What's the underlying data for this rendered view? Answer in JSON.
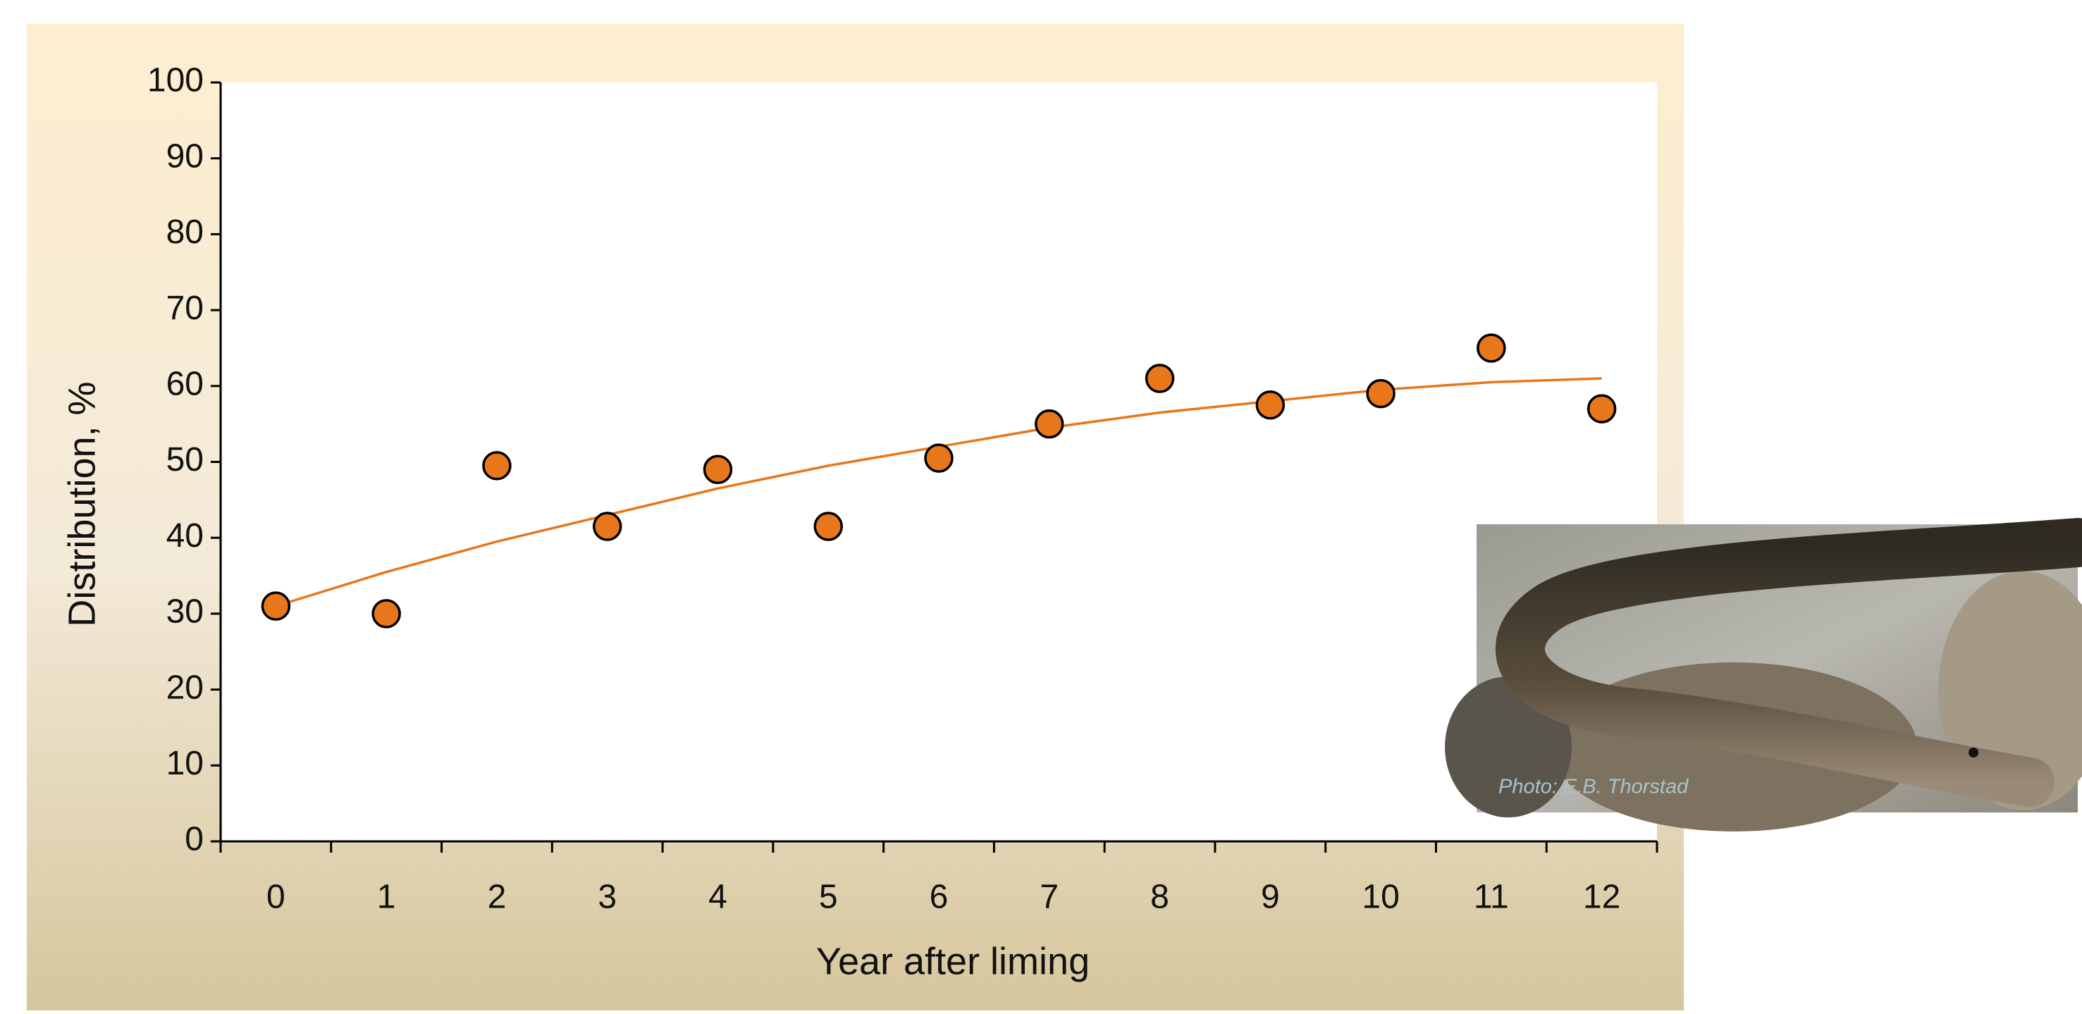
{
  "chart_data": {
    "type": "scatter",
    "x_label": "Year after liming",
    "y_label": "Distribution, %",
    "categories": [
      "0",
      "1",
      "2",
      "3",
      "4",
      "5",
      "6",
      "7",
      "8",
      "9",
      "10",
      "11",
      "12"
    ],
    "values": [
      31,
      30,
      49.5,
      41.5,
      49,
      41.5,
      50.5,
      55,
      61,
      57.5,
      59,
      65,
      57
    ],
    "trend_values": [
      31,
      35.5,
      39.5,
      43,
      46.5,
      49.5,
      52,
      54.5,
      56.5,
      58,
      59.5,
      60.5,
      61
    ],
    "color": "#e8761a",
    "trend_color": "#e8761a",
    "ylim": [
      0,
      100
    ],
    "yticks": [
      0,
      10,
      20,
      30,
      40,
      50,
      60,
      70,
      80,
      90,
      100
    ]
  },
  "photo": {
    "caption": "Photo: E.B. Thorstad"
  }
}
